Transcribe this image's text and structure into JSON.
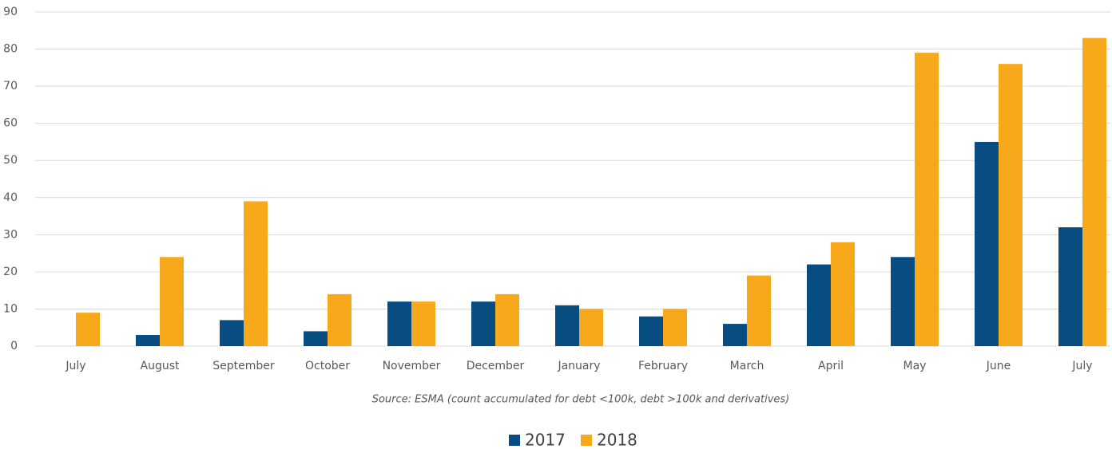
{
  "chart_data": {
    "type": "bar",
    "categories": [
      "July",
      "August",
      "September",
      "October",
      "November",
      "December",
      "January",
      "February",
      "March",
      "April",
      "May",
      "June",
      "July"
    ],
    "series": [
      {
        "name": "2017",
        "color": "#084d82",
        "values": [
          0,
          3,
          7,
          4,
          12,
          12,
          11,
          8,
          6,
          22,
          24,
          55,
          32
        ]
      },
      {
        "name": "2018",
        "color": "#f7a81b",
        "values": [
          9,
          24,
          39,
          14,
          12,
          14,
          10,
          10,
          19,
          28,
          79,
          76,
          83
        ]
      }
    ],
    "ylim": [
      0,
      90
    ],
    "yticks": [
      0,
      10,
      20,
      30,
      40,
      50,
      60,
      70,
      80,
      90
    ],
    "grid": true,
    "annotation": "Source: ESMA (count accumulated for debt <100k, debt >100k and derivatives)"
  }
}
